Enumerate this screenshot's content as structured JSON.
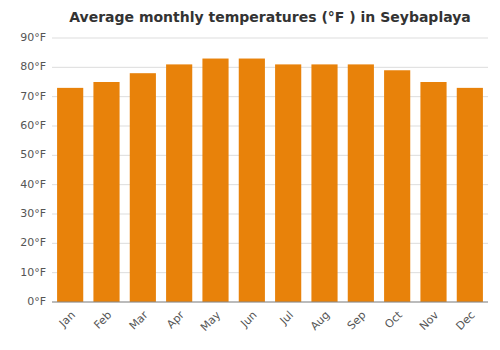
{
  "chart_data": {
    "type": "bar",
    "title": "Average monthly temperatures (°F ) in Seybaplaya",
    "categories": [
      "Jan",
      "Feb",
      "Mar",
      "Apr",
      "May",
      "Jun",
      "Jul",
      "Aug",
      "Sep",
      "Oct",
      "Nov",
      "Dec"
    ],
    "values": [
      73,
      75,
      78,
      81,
      83,
      83,
      81,
      81,
      81,
      79,
      75,
      73
    ],
    "color": "#E8820A",
    "ylim": [
      0,
      90
    ],
    "yticks": [
      {
        "value": 0,
        "label": "0°F"
      },
      {
        "value": 10,
        "label": "10°F"
      },
      {
        "value": 20,
        "label": "20°F"
      },
      {
        "value": 30,
        "label": "30°F"
      },
      {
        "value": 40,
        "label": "40°F"
      },
      {
        "value": 50,
        "label": "50°F"
      },
      {
        "value": 60,
        "label": "60°F"
      },
      {
        "value": 70,
        "label": "70°F"
      },
      {
        "value": 80,
        "label": "80°F"
      },
      {
        "value": 90,
        "label": "90°F"
      }
    ],
    "grid": true
  }
}
